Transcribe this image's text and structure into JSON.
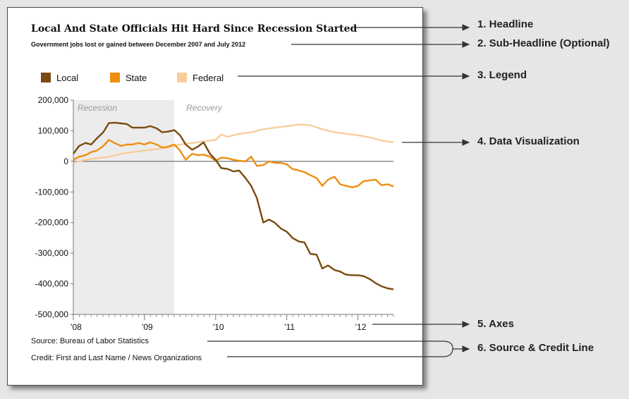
{
  "colors": {
    "local": "#7a4a10",
    "state": "#ee8e10",
    "federal": "#f8cd9c",
    "recession_band": "#ececec",
    "annotation_text": "#222222"
  },
  "chart_data": {
    "type": "line",
    "title": "Local And State Officials Hit Hard Since Recession Started",
    "subtitle": "Government jobs lost or gained between December 2007 and July 2012",
    "xlabel": "",
    "ylabel": "",
    "x_ticks": [
      "'08",
      "'09",
      "'10",
      "'11",
      "'12"
    ],
    "y_ticks": [
      "200,000",
      "100,000",
      "0",
      "-100,000",
      "-200,000",
      "-300,000",
      "-400,000",
      "-500,000"
    ],
    "ylim": [
      -500000,
      200000
    ],
    "xlim": [
      2008.0,
      2012.5
    ],
    "grid": false,
    "legend_position": "top-left",
    "period_labels": {
      "recession": "Recession",
      "recovery": "Recovery"
    },
    "recession_end": 2009.42,
    "series": [
      {
        "name": "Local",
        "x": [
          2008.0,
          2008.08,
          2008.17,
          2008.25,
          2008.33,
          2008.42,
          2008.5,
          2008.58,
          2008.67,
          2008.75,
          2008.83,
          2008.92,
          2009.0,
          2009.08,
          2009.17,
          2009.25,
          2009.33,
          2009.42,
          2009.5,
          2009.58,
          2009.67,
          2009.75,
          2009.83,
          2009.92,
          2010.0,
          2010.08,
          2010.17,
          2010.25,
          2010.33,
          2010.42,
          2010.5,
          2010.58,
          2010.67,
          2010.75,
          2010.83,
          2010.92,
          2011.0,
          2011.08,
          2011.17,
          2011.25,
          2011.33,
          2011.42,
          2011.5,
          2011.58,
          2011.67,
          2011.75,
          2011.83,
          2011.92,
          2012.0,
          2012.08,
          2012.17,
          2012.25,
          2012.33,
          2012.42,
          2012.5
        ],
        "values": [
          25000,
          50000,
          60000,
          55000,
          75000,
          95000,
          125000,
          126000,
          124000,
          122000,
          110000,
          110000,
          110000,
          115000,
          108000,
          95000,
          97000,
          102000,
          85000,
          55000,
          38000,
          48000,
          62000,
          25000,
          5000,
          -22000,
          -25000,
          -33000,
          -30000,
          -55000,
          -80000,
          -120000,
          -200000,
          -190000,
          -200000,
          -220000,
          -230000,
          -250000,
          -262000,
          -265000,
          -302000,
          -305000,
          -350000,
          -340000,
          -355000,
          -360000,
          -370000,
          -372000,
          -372000,
          -375000,
          -385000,
          -398000,
          -408000,
          -415000,
          -418000
        ]
      },
      {
        "name": "State",
        "x": [
          2008.0,
          2008.08,
          2008.17,
          2008.25,
          2008.33,
          2008.42,
          2008.5,
          2008.58,
          2008.67,
          2008.75,
          2008.83,
          2008.92,
          2009.0,
          2009.08,
          2009.17,
          2009.25,
          2009.33,
          2009.42,
          2009.5,
          2009.58,
          2009.67,
          2009.75,
          2009.83,
          2009.92,
          2010.0,
          2010.08,
          2010.17,
          2010.25,
          2010.33,
          2010.42,
          2010.5,
          2010.58,
          2010.67,
          2010.75,
          2010.83,
          2010.92,
          2011.0,
          2011.08,
          2011.17,
          2011.25,
          2011.33,
          2011.42,
          2011.5,
          2011.58,
          2011.67,
          2011.75,
          2011.83,
          2011.92,
          2012.0,
          2012.08,
          2012.17,
          2012.25,
          2012.33,
          2012.42,
          2012.5
        ],
        "values": [
          5000,
          15000,
          20000,
          30000,
          35000,
          50000,
          70000,
          60000,
          50000,
          55000,
          55000,
          60000,
          55000,
          62000,
          55000,
          45000,
          48000,
          55000,
          35000,
          5000,
          25000,
          20000,
          22000,
          15000,
          2000,
          12000,
          10000,
          5000,
          2000,
          0,
          15000,
          -15000,
          -12000,
          0,
          -5000,
          -5000,
          -10000,
          -25000,
          -30000,
          -35000,
          -45000,
          -55000,
          -80000,
          -60000,
          -50000,
          -75000,
          -80000,
          -85000,
          -80000,
          -65000,
          -62000,
          -60000,
          -78000,
          -75000,
          -82000
        ]
      },
      {
        "name": "Federal",
        "x": [
          2008.0,
          2008.17,
          2008.33,
          2008.5,
          2008.67,
          2008.83,
          2009.0,
          2009.17,
          2009.33,
          2009.5,
          2009.67,
          2009.83,
          2010.0,
          2010.08,
          2010.17,
          2010.25,
          2010.33,
          2010.5,
          2010.67,
          2010.83,
          2011.0,
          2011.17,
          2011.33,
          2011.5,
          2011.67,
          2011.83,
          2012.0,
          2012.17,
          2012.33,
          2012.5
        ],
        "values": [
          -5000,
          5000,
          10000,
          15000,
          25000,
          30000,
          35000,
          40000,
          45000,
          55000,
          60000,
          65000,
          70000,
          88000,
          80000,
          85000,
          90000,
          95000,
          105000,
          110000,
          115000,
          120000,
          118000,
          105000,
          95000,
          90000,
          85000,
          78000,
          68000,
          62000
        ]
      }
    ]
  },
  "legend": [
    {
      "name": "Local",
      "color": "#7a4a10"
    },
    {
      "name": "State",
      "color": "#ee8e10"
    },
    {
      "name": "Federal",
      "color": "#f8cd9c"
    }
  ],
  "source_line": "Source: Bureau of Labor Statistics",
  "credit_line": "Credit: First and Last Name / News Organizations",
  "annotations": [
    {
      "label": "1. Headline"
    },
    {
      "label": "2. Sub-Headline (Optional)"
    },
    {
      "label": "3. Legend"
    },
    {
      "label": "4. Data Visualization"
    },
    {
      "label": "5. Axes"
    },
    {
      "label": "6. Source & Credit Line"
    }
  ]
}
